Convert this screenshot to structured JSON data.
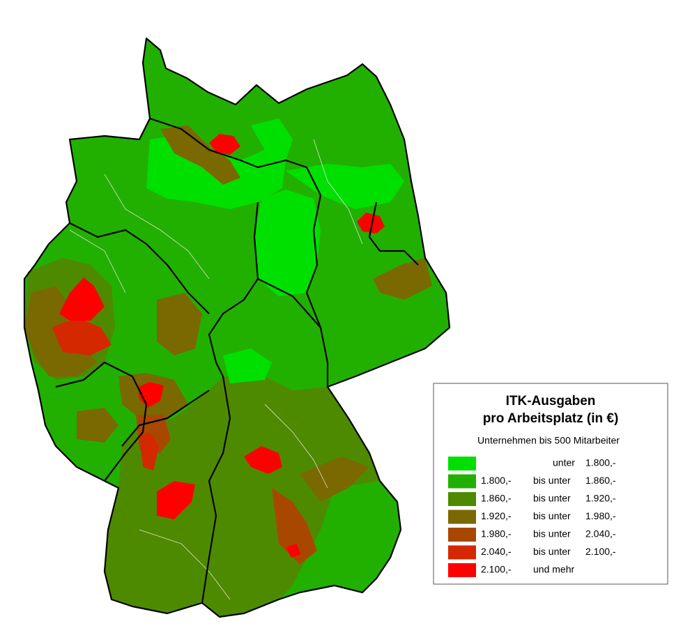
{
  "legend": {
    "title": "ITK-Ausgaben",
    "title2": "pro Arbeitsplatz (in €)",
    "subtitle": "Unternehmen bis 500 Mitarbeiter",
    "items": [
      {
        "color": "#00e000",
        "range": "unter",
        "to": "1.800,-"
      },
      {
        "color": "#22b000",
        "from": "1.800,-",
        "range": "bis unter",
        "to": "1.860,-"
      },
      {
        "color": "#4e8a00",
        "from": "1.860,-",
        "range": "bis unter",
        "to": "1.920,-"
      },
      {
        "color": "#7a6800",
        "from": "1.920,-",
        "range": "bis unter",
        "to": "1.980,-"
      },
      {
        "color": "#a84800",
        "from": "1.980,-",
        "range": "bis unter",
        "to": "2.040,-"
      },
      {
        "color": "#d42800",
        "from": "2.040,-",
        "range": "bis unter",
        "to": "2.100,-"
      },
      {
        "color": "#ff0000",
        "from": "2.100,-",
        "range": "und mehr"
      }
    ]
  }
}
